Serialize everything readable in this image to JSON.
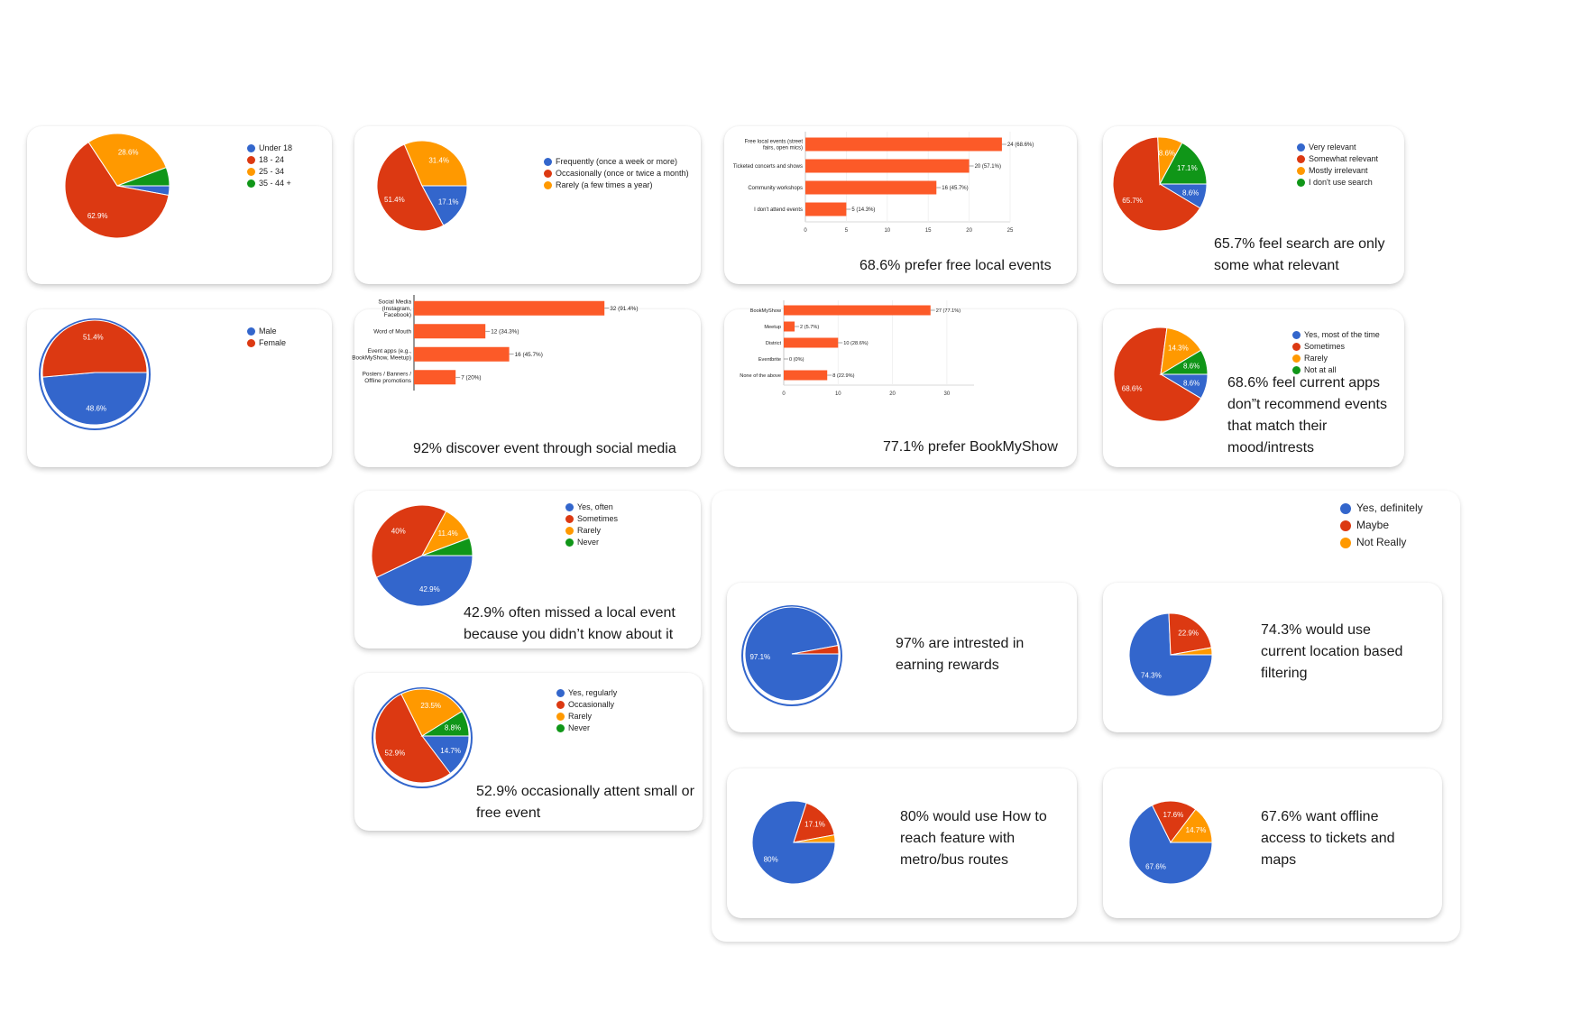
{
  "colors": {
    "blue": "#3366cc",
    "red": "#dc3912",
    "orange": "#ff9900",
    "green": "#109618",
    "bar": "#fc5a28"
  },
  "captions": {
    "free_events": "68.6% prefer free local events",
    "search": "65.7% feel search are only some what relevant",
    "discover": "92% discover event through social media",
    "bookmyshow": "77.1% prefer BookMyShow",
    "recommend": "68.6% feel current apps don”t recommend events that match their mood/intrests",
    "missed": "42.9% often missed a local event because you didn’t know about it",
    "attend": "52.9% occasionally attent small or free event",
    "rewards": "97% are intrested in earning rewards",
    "location": "74.3% would use current location based filtering",
    "routes": "80% would use How to reach feature with metro/bus routes",
    "offline": "67.6% want offline access to tickets and maps"
  },
  "chart_data": [
    {
      "id": "age",
      "type": "pie",
      "categories": [
        "Under 18",
        "18 - 24",
        "25 - 34",
        "35 - 44 +"
      ],
      "values": [
        2.9,
        62.9,
        28.6,
        5.7
      ],
      "labels": [
        "",
        "62.9%",
        "28.6%",
        ""
      ],
      "colors": [
        "#3366cc",
        "#dc3912",
        "#ff9900",
        "#109618"
      ]
    },
    {
      "id": "frequency",
      "type": "pie",
      "categories": [
        "Frequently (once a week or more)",
        "Occasionally (once or twice a month)",
        "Rarely (a few times a year)"
      ],
      "values": [
        17.1,
        51.4,
        31.4
      ],
      "labels": [
        "17.1%",
        "51.4%",
        "31.4%"
      ],
      "colors": [
        "#3366cc",
        "#dc3912",
        "#ff9900"
      ]
    },
    {
      "id": "event_types",
      "type": "bar",
      "categories": [
        "Free local events (street fairs, open mics)",
        "Ticketed concerts and shows",
        "Community workshops",
        "I don't attend events"
      ],
      "values": [
        24,
        20,
        16,
        5
      ],
      "data_labels": [
        "24 (68.6%)",
        "20 (57.1%)",
        "16 (45.7%)",
        "5 (14.3%)"
      ],
      "xlim": [
        0,
        25
      ],
      "xticks": [
        0,
        5,
        10,
        15,
        20,
        25
      ]
    },
    {
      "id": "search_relevance",
      "type": "pie",
      "categories": [
        "Very relevant",
        "Somewhat relevant",
        "Mostly irrelevant",
        "I don't use search"
      ],
      "values": [
        8.6,
        65.7,
        8.6,
        17.1
      ],
      "labels": [
        "8.6%",
        "65.7%",
        "8.6%",
        "17.1%"
      ],
      "colors": [
        "#3366cc",
        "#dc3912",
        "#ff9900",
        "#109618"
      ]
    },
    {
      "id": "gender",
      "type": "pie",
      "categories": [
        "Male",
        "Female"
      ],
      "values": [
        48.6,
        51.4
      ],
      "labels": [
        "48.6%",
        "51.4%"
      ],
      "colors": [
        "#3366cc",
        "#dc3912"
      ]
    },
    {
      "id": "discovery",
      "type": "bar",
      "categories": [
        "Social Media (Instagram, Facebook)",
        "Word of Mouth",
        "Event apps (e.g., BookMyShow, Meetup)",
        "Posters / Banners / Offline promotions"
      ],
      "values": [
        32,
        12,
        16,
        7
      ],
      "data_labels": [
        "32 (91.4%)",
        "12 (34.3%)",
        "16 (45.7%)",
        "7 (20%)"
      ],
      "xlim": [
        0,
        35
      ],
      "xticks": []
    },
    {
      "id": "platforms",
      "type": "bar",
      "categories": [
        "BookMyShow",
        "Meetup",
        "District",
        "Eventbrite",
        "None of the above"
      ],
      "values": [
        27,
        2,
        10,
        0,
        8
      ],
      "data_labels": [
        "27 (77.1%)",
        "2 (5.7%)",
        "10 (28.6%)",
        "0 (0%)",
        "8 (22.9%)"
      ],
      "xlim": [
        0,
        35
      ],
      "xticks": [
        0,
        10,
        20,
        30
      ]
    },
    {
      "id": "recommendations",
      "type": "pie",
      "categories": [
        "Yes, most of the time",
        "Sometimes",
        "Rarely",
        "Not at all"
      ],
      "values": [
        8.6,
        68.6,
        14.3,
        8.6
      ],
      "labels": [
        "8.6%",
        "68.6%",
        "14.3%",
        "8.6%"
      ],
      "colors": [
        "#3366cc",
        "#dc3912",
        "#ff9900",
        "#109618"
      ]
    },
    {
      "id": "missed",
      "type": "pie",
      "categories": [
        "Yes, often",
        "Sometimes",
        "Rarely",
        "Never"
      ],
      "values": [
        42.9,
        40,
        11.4,
        5.7
      ],
      "labels": [
        "42.9%",
        "40%",
        "11.4%",
        ""
      ],
      "colors": [
        "#3366cc",
        "#dc3912",
        "#ff9900",
        "#109618"
      ]
    },
    {
      "id": "attend_small",
      "type": "pie",
      "categories": [
        "Yes, regularly",
        "Occasionally",
        "Rarely",
        "Never"
      ],
      "values": [
        14.7,
        52.9,
        23.5,
        8.8
      ],
      "labels": [
        "14.7%",
        "52.9%",
        "23.5%",
        "8.8%"
      ],
      "colors": [
        "#3366cc",
        "#dc3912",
        "#ff9900",
        "#109618"
      ]
    },
    {
      "id": "rewards",
      "type": "pie",
      "categories": [
        "Yes, definitely",
        "Maybe",
        "Not Really"
      ],
      "values": [
        97.1,
        2.9,
        0
      ],
      "labels": [
        "97.1%",
        "",
        ""
      ],
      "colors": [
        "#3366cc",
        "#dc3912",
        "#ff9900"
      ]
    },
    {
      "id": "location",
      "type": "pie",
      "categories": [
        "Yes, definitely",
        "Maybe",
        "Not Really"
      ],
      "values": [
        74.3,
        22.9,
        2.8
      ],
      "labels": [
        "74.3%",
        "22.9%",
        ""
      ],
      "colors": [
        "#3366cc",
        "#dc3912",
        "#ff9900"
      ]
    },
    {
      "id": "routes",
      "type": "pie",
      "categories": [
        "Yes, definitely",
        "Maybe",
        "Not Really"
      ],
      "values": [
        80,
        17.1,
        2.9
      ],
      "labels": [
        "80%",
        "17.1%",
        ""
      ],
      "colors": [
        "#3366cc",
        "#dc3912",
        "#ff9900"
      ]
    },
    {
      "id": "offline",
      "type": "pie",
      "categories": [
        "Yes, definitely",
        "Maybe",
        "Not Really"
      ],
      "values": [
        67.6,
        17.6,
        14.7
      ],
      "labels": [
        "67.6%",
        "17.6%",
        "14.7%"
      ],
      "colors": [
        "#3366cc",
        "#dc3912",
        "#ff9900"
      ]
    }
  ],
  "shared_legend": {
    "items": [
      "Yes, definitely",
      "Maybe",
      "Not Really"
    ]
  }
}
